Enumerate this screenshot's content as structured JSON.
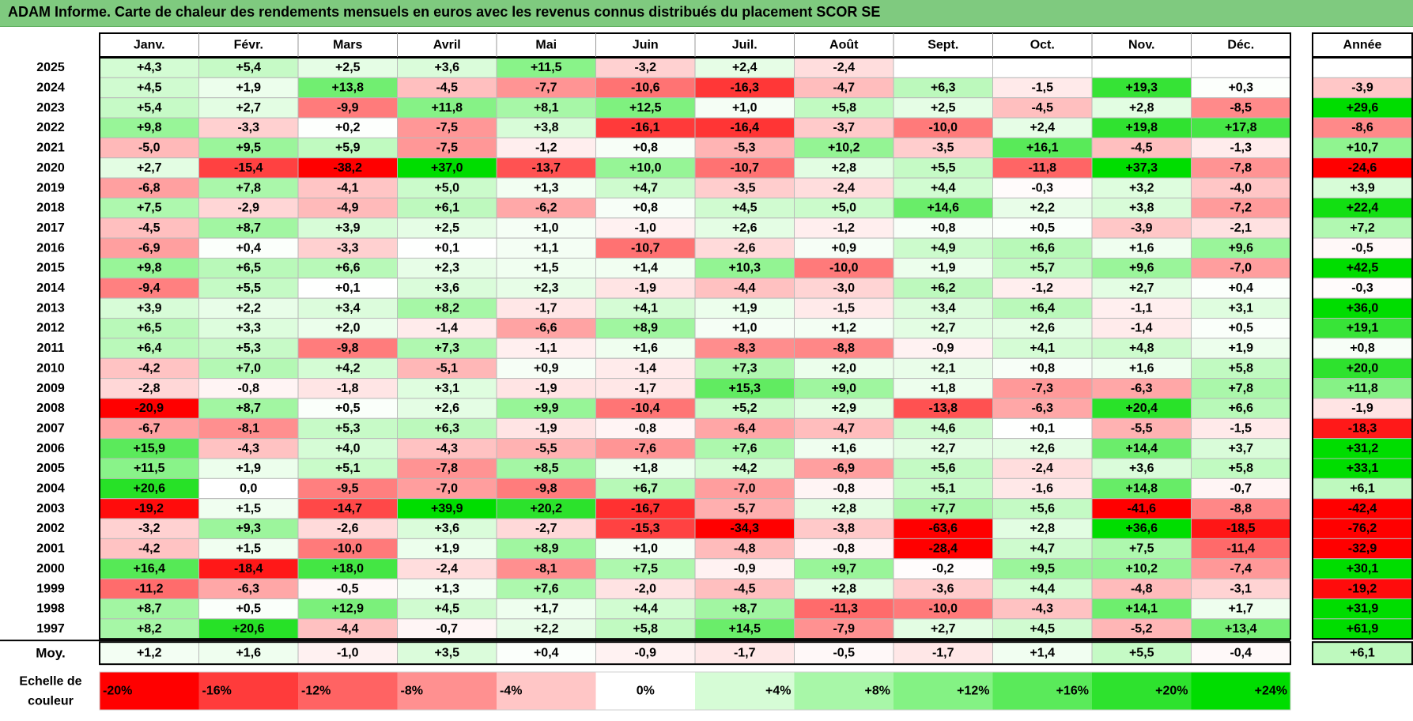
{
  "header": {
    "title": "ADAM Informe. Carte de chaleur des rendements mensuels en euros avec les revenus connus distribués du placement SCOR SE"
  },
  "chart_data": {
    "type": "heatmap",
    "title": "ADAM Informe. Carte de chaleur des rendements mensuels en euros avec les revenus connus distribués du placement SCOR SE",
    "months": [
      "Janv.",
      "Févr.",
      "Mars",
      "Avril",
      "Mai",
      "Juin",
      "Juil.",
      "Août",
      "Sept.",
      "Oct.",
      "Nov.",
      "Déc."
    ],
    "year_column_label": "Année",
    "rows": [
      {
        "year": "2025",
        "values": [
          "+4,3",
          "+5,4",
          "+2,5",
          "+3,6",
          "+11,5",
          "-3,2",
          "+2,4",
          "-2,4",
          "",
          "",
          "",
          ""
        ],
        "annual": ""
      },
      {
        "year": "2024",
        "values": [
          "+4,5",
          "+1,9",
          "+13,8",
          "-4,5",
          "-7,7",
          "-10,6",
          "-16,3",
          "-4,7",
          "+6,3",
          "-1,5",
          "+19,3",
          "+0,3"
        ],
        "annual": "-3,9"
      },
      {
        "year": "2023",
        "values": [
          "+5,4",
          "+2,7",
          "-9,9",
          "+11,8",
          "+8,1",
          "+12,5",
          "+1,0",
          "+5,8",
          "+2,5",
          "-4,5",
          "+2,8",
          "-8,5"
        ],
        "annual": "+29,6"
      },
      {
        "year": "2022",
        "values": [
          "+9,8",
          "-3,3",
          "+0,2",
          "-7,5",
          "+3,8",
          "-16,1",
          "-16,4",
          "-3,7",
          "-10,0",
          "+2,4",
          "+19,8",
          "+17,8"
        ],
        "annual": "-8,6"
      },
      {
        "year": "2021",
        "values": [
          "-5,0",
          "+9,5",
          "+5,9",
          "-7,5",
          "-1,2",
          "+0,8",
          "-5,3",
          "+10,2",
          "-3,5",
          "+16,1",
          "-4,5",
          "-1,3"
        ],
        "annual": "+10,7"
      },
      {
        "year": "2020",
        "values": [
          "+2,7",
          "-15,4",
          "-38,2",
          "+37,0",
          "-13,7",
          "+10,0",
          "-10,7",
          "+2,8",
          "+5,5",
          "-11,8",
          "+37,3",
          "-7,8"
        ],
        "annual": "-24,6"
      },
      {
        "year": "2019",
        "values": [
          "-6,8",
          "+7,8",
          "-4,1",
          "+5,0",
          "+1,3",
          "+4,7",
          "-3,5",
          "-2,4",
          "+4,4",
          "-0,3",
          "+3,2",
          "-4,0"
        ],
        "annual": "+3,9"
      },
      {
        "year": "2018",
        "values": [
          "+7,5",
          "-2,9",
          "-4,9",
          "+6,1",
          "-6,2",
          "+0,8",
          "+4,5",
          "+5,0",
          "+14,6",
          "+2,2",
          "+3,8",
          "-7,2"
        ],
        "annual": "+22,4"
      },
      {
        "year": "2017",
        "values": [
          "-4,5",
          "+8,7",
          "+3,9",
          "+2,5",
          "+1,0",
          "-1,0",
          "+2,6",
          "-1,2",
          "+0,8",
          "+0,5",
          "-3,9",
          "-2,1"
        ],
        "annual": "+7,2"
      },
      {
        "year": "2016",
        "values": [
          "-6,9",
          "+0,4",
          "-3,3",
          "+0,1",
          "+1,1",
          "-10,7",
          "-2,6",
          "+0,9",
          "+4,9",
          "+6,6",
          "+1,6",
          "+9,6"
        ],
        "annual": "-0,5"
      },
      {
        "year": "2015",
        "values": [
          "+9,8",
          "+6,5",
          "+6,6",
          "+2,3",
          "+1,5",
          "+1,4",
          "+10,3",
          "-10,0",
          "+1,9",
          "+5,7",
          "+9,6",
          "-7,0"
        ],
        "annual": "+42,5"
      },
      {
        "year": "2014",
        "values": [
          "-9,4",
          "+5,5",
          "+0,1",
          "+3,6",
          "+2,3",
          "-1,9",
          "-4,4",
          "-3,0",
          "+6,2",
          "-1,2",
          "+2,7",
          "+0,4"
        ],
        "annual": "-0,3"
      },
      {
        "year": "2013",
        "values": [
          "+3,9",
          "+2,2",
          "+3,4",
          "+8,2",
          "-1,7",
          "+4,1",
          "+1,9",
          "-1,5",
          "+3,4",
          "+6,4",
          "-1,1",
          "+3,1"
        ],
        "annual": "+36,0"
      },
      {
        "year": "2012",
        "values": [
          "+6,5",
          "+3,3",
          "+2,0",
          "-1,4",
          "-6,6",
          "+8,9",
          "+1,0",
          "+1,2",
          "+2,7",
          "+2,6",
          "-1,4",
          "+0,5"
        ],
        "annual": "+19,1"
      },
      {
        "year": "2011",
        "values": [
          "+6,4",
          "+5,3",
          "-9,8",
          "+7,3",
          "-1,1",
          "+1,6",
          "-8,3",
          "-8,8",
          "-0,9",
          "+4,1",
          "+4,8",
          "+1,9"
        ],
        "annual": "+0,8"
      },
      {
        "year": "2010",
        "values": [
          "-4,2",
          "+7,0",
          "+4,2",
          "-5,1",
          "+0,9",
          "-1,4",
          "+7,3",
          "+2,0",
          "+2,1",
          "+0,8",
          "+1,6",
          "+5,8"
        ],
        "annual": "+20,0"
      },
      {
        "year": "2009",
        "values": [
          "-2,8",
          "-0,8",
          "-1,8",
          "+3,1",
          "-1,9",
          "-1,7",
          "+15,3",
          "+9,0",
          "+1,8",
          "-7,3",
          "-6,3",
          "+7,8"
        ],
        "annual": "+11,8"
      },
      {
        "year": "2008",
        "values": [
          "-20,9",
          "+8,7",
          "+0,5",
          "+2,6",
          "+9,9",
          "-10,4",
          "+5,2",
          "+2,9",
          "-13,8",
          "-6,3",
          "+20,4",
          "+6,6"
        ],
        "annual": "-1,9"
      },
      {
        "year": "2007",
        "values": [
          "-6,7",
          "-8,1",
          "+5,3",
          "+6,3",
          "-1,9",
          "-0,8",
          "-6,4",
          "-4,7",
          "+4,6",
          "+0,1",
          "-5,5",
          "-1,5"
        ],
        "annual": "-18,3"
      },
      {
        "year": "2006",
        "values": [
          "+15,9",
          "-4,3",
          "+4,0",
          "-4,3",
          "-5,5",
          "-7,6",
          "+7,6",
          "+1,6",
          "+2,7",
          "+2,6",
          "+14,4",
          "+3,7"
        ],
        "annual": "+31,2"
      },
      {
        "year": "2005",
        "values": [
          "+11,5",
          "+1,9",
          "+5,1",
          "-7,8",
          "+8,5",
          "+1,8",
          "+4,2",
          "-6,9",
          "+5,6",
          "-2,4",
          "+3,6",
          "+5,8"
        ],
        "annual": "+33,1"
      },
      {
        "year": "2004",
        "values": [
          "+20,6",
          "0,0",
          "-9,5",
          "-7,0",
          "-9,8",
          "+6,7",
          "-7,0",
          "-0,8",
          "+5,1",
          "-1,6",
          "+14,8",
          "-0,7"
        ],
        "annual": "+6,1"
      },
      {
        "year": "2003",
        "values": [
          "-19,2",
          "+1,5",
          "-14,7",
          "+39,9",
          "+20,2",
          "-16,7",
          "-5,7",
          "+2,8",
          "+7,7",
          "+5,6",
          "-41,6",
          "-8,8"
        ],
        "annual": "-42,4"
      },
      {
        "year": "2002",
        "values": [
          "-3,2",
          "+9,3",
          "-2,6",
          "+3,6",
          "-2,7",
          "-15,3",
          "-34,3",
          "-3,8",
          "-63,6",
          "+2,8",
          "+36,6",
          "-18,5"
        ],
        "annual": "-76,2"
      },
      {
        "year": "2001",
        "values": [
          "-4,2",
          "+1,5",
          "-10,0",
          "+1,9",
          "+8,9",
          "+1,0",
          "-4,8",
          "-0,8",
          "-28,4",
          "+4,7",
          "+7,5",
          "-11,4"
        ],
        "annual": "-32,9"
      },
      {
        "year": "2000",
        "values": [
          "+16,4",
          "-18,4",
          "+18,0",
          "-2,4",
          "-8,1",
          "+7,5",
          "-0,9",
          "+9,7",
          "-0,2",
          "+9,5",
          "+10,2",
          "-7,4"
        ],
        "annual": "+30,1"
      },
      {
        "year": "1999",
        "values": [
          "-11,2",
          "-6,3",
          "-0,5",
          "+1,3",
          "+7,6",
          "-2,0",
          "-4,5",
          "+2,8",
          "-3,6",
          "+4,4",
          "-4,8",
          "-3,1"
        ],
        "annual": "-19,2"
      },
      {
        "year": "1998",
        "values": [
          "+8,7",
          "+0,5",
          "+12,9",
          "+4,5",
          "+1,7",
          "+4,4",
          "+8,7",
          "-11,3",
          "-10,0",
          "-4,3",
          "+14,1",
          "+1,7"
        ],
        "annual": "+31,9"
      },
      {
        "year": "1997",
        "values": [
          "+8,2",
          "+20,6",
          "-4,4",
          "-0,7",
          "+2,2",
          "+5,8",
          "+14,5",
          "-7,9",
          "+2,7",
          "+4,5",
          "-5,2",
          "+13,4"
        ],
        "annual": "+61,9"
      }
    ],
    "average": {
      "label": "Moy.",
      "values": [
        "+1,2",
        "+1,6",
        "-1,0",
        "+3,5",
        "+0,4",
        "-0,9",
        "-1,7",
        "-0,5",
        "-1,7",
        "+1,4",
        "+5,5",
        "-0,4"
      ],
      "annual": "+6,1"
    },
    "color_scale": {
      "label_line1": "Echelle de",
      "label_line2": "couleur",
      "stops": [
        {
          "label": "-20%",
          "value": -20,
          "color": "#ff0000"
        },
        {
          "label": "-16%",
          "value": -16,
          "color": "#ff3b3b"
        },
        {
          "label": "-12%",
          "value": -12,
          "color": "#ff6363"
        },
        {
          "label": "-8%",
          "value": -8,
          "color": "#ff9090"
        },
        {
          "label": "-4%",
          "value": -4,
          "color": "#ffc6c6"
        },
        {
          "label": "0%",
          "value": 0,
          "color": "#ffffff"
        },
        {
          "label": "+4%",
          "value": 4,
          "color": "#d6fcd6"
        },
        {
          "label": "+8%",
          "value": 8,
          "color": "#a8f7a8"
        },
        {
          "label": "+12%",
          "value": 12,
          "color": "#84f284"
        },
        {
          "label": "+16%",
          "value": 16,
          "color": "#5aea5a"
        },
        {
          "label": "+20%",
          "value": 20,
          "color": "#2ee22e"
        },
        {
          "label": "+24%",
          "value": 24,
          "color": "#00dd00"
        }
      ]
    }
  }
}
